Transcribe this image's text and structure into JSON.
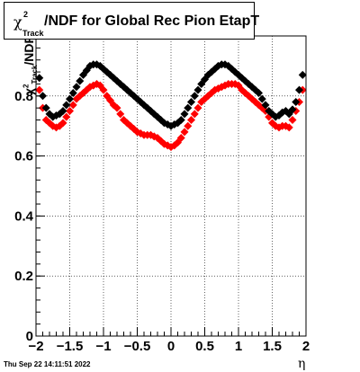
{
  "title": {
    "chi_symbol": "χ",
    "chi_superscript": "2",
    "chi_subscript": "Track",
    "text": "/NDF for Global Rec Pion EtapT"
  },
  "axis": {
    "y_title_prefix": "χ",
    "y_title_sup": "2",
    "y_title_sub": "Track",
    "y_title_suffix": "/NDF",
    "x_title": "η"
  },
  "date_stamp": "Thu Sep 22 14:11:51 2022",
  "chart_data": {
    "type": "scatter",
    "xlim": [
      -2,
      2
    ],
    "ylim": [
      0,
      1.0
    ],
    "x_ticks": [
      {
        "value": -2,
        "label": "−2"
      },
      {
        "value": -1.5,
        "label": "−1.5"
      },
      {
        "value": -1,
        "label": "−1"
      },
      {
        "value": -0.5,
        "label": "−0.5"
      },
      {
        "value": 0,
        "label": "0"
      },
      {
        "value": 0.5,
        "label": "0.5"
      },
      {
        "value": 1,
        "label": "1"
      },
      {
        "value": 1.5,
        "label": "1.5"
      },
      {
        "value": 2,
        "label": "2"
      }
    ],
    "y_ticks": [
      {
        "value": 0,
        "label": "0"
      },
      {
        "value": 0.2,
        "label": "0.2"
      },
      {
        "value": 0.4,
        "label": "0.4"
      },
      {
        "value": 0.6,
        "label": "0.6"
      },
      {
        "value": 0.8,
        "label": "0.8"
      }
    ],
    "grid": true,
    "series": [
      {
        "color": "#000000",
        "x": [
          -1.95,
          -1.9,
          -1.85,
          -1.8,
          -1.75,
          -1.7,
          -1.65,
          -1.6,
          -1.55,
          -1.5,
          -1.45,
          -1.4,
          -1.35,
          -1.3,
          -1.25,
          -1.2,
          -1.15,
          -1.1,
          -1.05,
          -1.0,
          -0.95,
          -0.9,
          -0.85,
          -0.8,
          -0.75,
          -0.7,
          -0.65,
          -0.6,
          -0.55,
          -0.5,
          -0.45,
          -0.4,
          -0.35,
          -0.3,
          -0.25,
          -0.2,
          -0.15,
          -0.1,
          -0.05,
          0.0,
          0.05,
          0.1,
          0.15,
          0.2,
          0.25,
          0.3,
          0.35,
          0.4,
          0.45,
          0.5,
          0.55,
          0.6,
          0.65,
          0.7,
          0.75,
          0.8,
          0.85,
          0.9,
          0.95,
          1.0,
          1.05,
          1.1,
          1.15,
          1.2,
          1.25,
          1.3,
          1.35,
          1.4,
          1.45,
          1.5,
          1.55,
          1.6,
          1.65,
          1.7,
          1.75,
          1.8,
          1.85,
          1.9,
          1.95
        ],
        "y": [
          0.86,
          0.8,
          0.76,
          0.74,
          0.73,
          0.735,
          0.74,
          0.75,
          0.77,
          0.79,
          0.81,
          0.83,
          0.85,
          0.87,
          0.885,
          0.9,
          0.905,
          0.905,
          0.9,
          0.89,
          0.88,
          0.87,
          0.86,
          0.85,
          0.84,
          0.83,
          0.82,
          0.81,
          0.8,
          0.79,
          0.78,
          0.77,
          0.76,
          0.75,
          0.74,
          0.73,
          0.72,
          0.71,
          0.705,
          0.7,
          0.705,
          0.71,
          0.72,
          0.74,
          0.76,
          0.78,
          0.8,
          0.82,
          0.84,
          0.855,
          0.87,
          0.88,
          0.89,
          0.9,
          0.905,
          0.905,
          0.9,
          0.89,
          0.88,
          0.87,
          0.86,
          0.85,
          0.84,
          0.83,
          0.82,
          0.81,
          0.79,
          0.77,
          0.75,
          0.74,
          0.73,
          0.735,
          0.745,
          0.75,
          0.74,
          0.755,
          0.78,
          0.82,
          0.87
        ]
      },
      {
        "color": "#ff0000",
        "x": [
          -1.95,
          -1.9,
          -1.85,
          -1.8,
          -1.75,
          -1.7,
          -1.65,
          -1.6,
          -1.55,
          -1.5,
          -1.45,
          -1.4,
          -1.35,
          -1.3,
          -1.25,
          -1.2,
          -1.15,
          -1.1,
          -1.05,
          -1.0,
          -0.95,
          -0.9,
          -0.85,
          -0.8,
          -0.75,
          -0.7,
          -0.65,
          -0.6,
          -0.55,
          -0.5,
          -0.45,
          -0.4,
          -0.35,
          -0.3,
          -0.25,
          -0.2,
          -0.15,
          -0.1,
          -0.05,
          0.0,
          0.05,
          0.1,
          0.15,
          0.2,
          0.25,
          0.3,
          0.35,
          0.4,
          0.45,
          0.5,
          0.55,
          0.6,
          0.65,
          0.7,
          0.75,
          0.8,
          0.85,
          0.9,
          0.95,
          1.0,
          1.05,
          1.1,
          1.15,
          1.2,
          1.25,
          1.3,
          1.35,
          1.4,
          1.45,
          1.5,
          1.55,
          1.6,
          1.65,
          1.7,
          1.75,
          1.8,
          1.85,
          1.9,
          1.95
        ],
        "y": [
          0.82,
          0.76,
          0.72,
          0.71,
          0.7,
          0.695,
          0.7,
          0.71,
          0.73,
          0.75,
          0.77,
          0.79,
          0.8,
          0.81,
          0.82,
          0.83,
          0.835,
          0.84,
          0.835,
          0.82,
          0.8,
          0.785,
          0.77,
          0.76,
          0.74,
          0.72,
          0.71,
          0.7,
          0.69,
          0.68,
          0.675,
          0.67,
          0.67,
          0.67,
          0.665,
          0.66,
          0.65,
          0.64,
          0.635,
          0.63,
          0.635,
          0.645,
          0.66,
          0.68,
          0.7,
          0.72,
          0.74,
          0.76,
          0.78,
          0.79,
          0.8,
          0.81,
          0.82,
          0.825,
          0.83,
          0.835,
          0.84,
          0.84,
          0.84,
          0.835,
          0.82,
          0.81,
          0.8,
          0.79,
          0.78,
          0.77,
          0.76,
          0.75,
          0.73,
          0.71,
          0.7,
          0.695,
          0.7,
          0.7,
          0.695,
          0.72,
          0.75,
          0.78,
          0.82
        ]
      }
    ]
  }
}
